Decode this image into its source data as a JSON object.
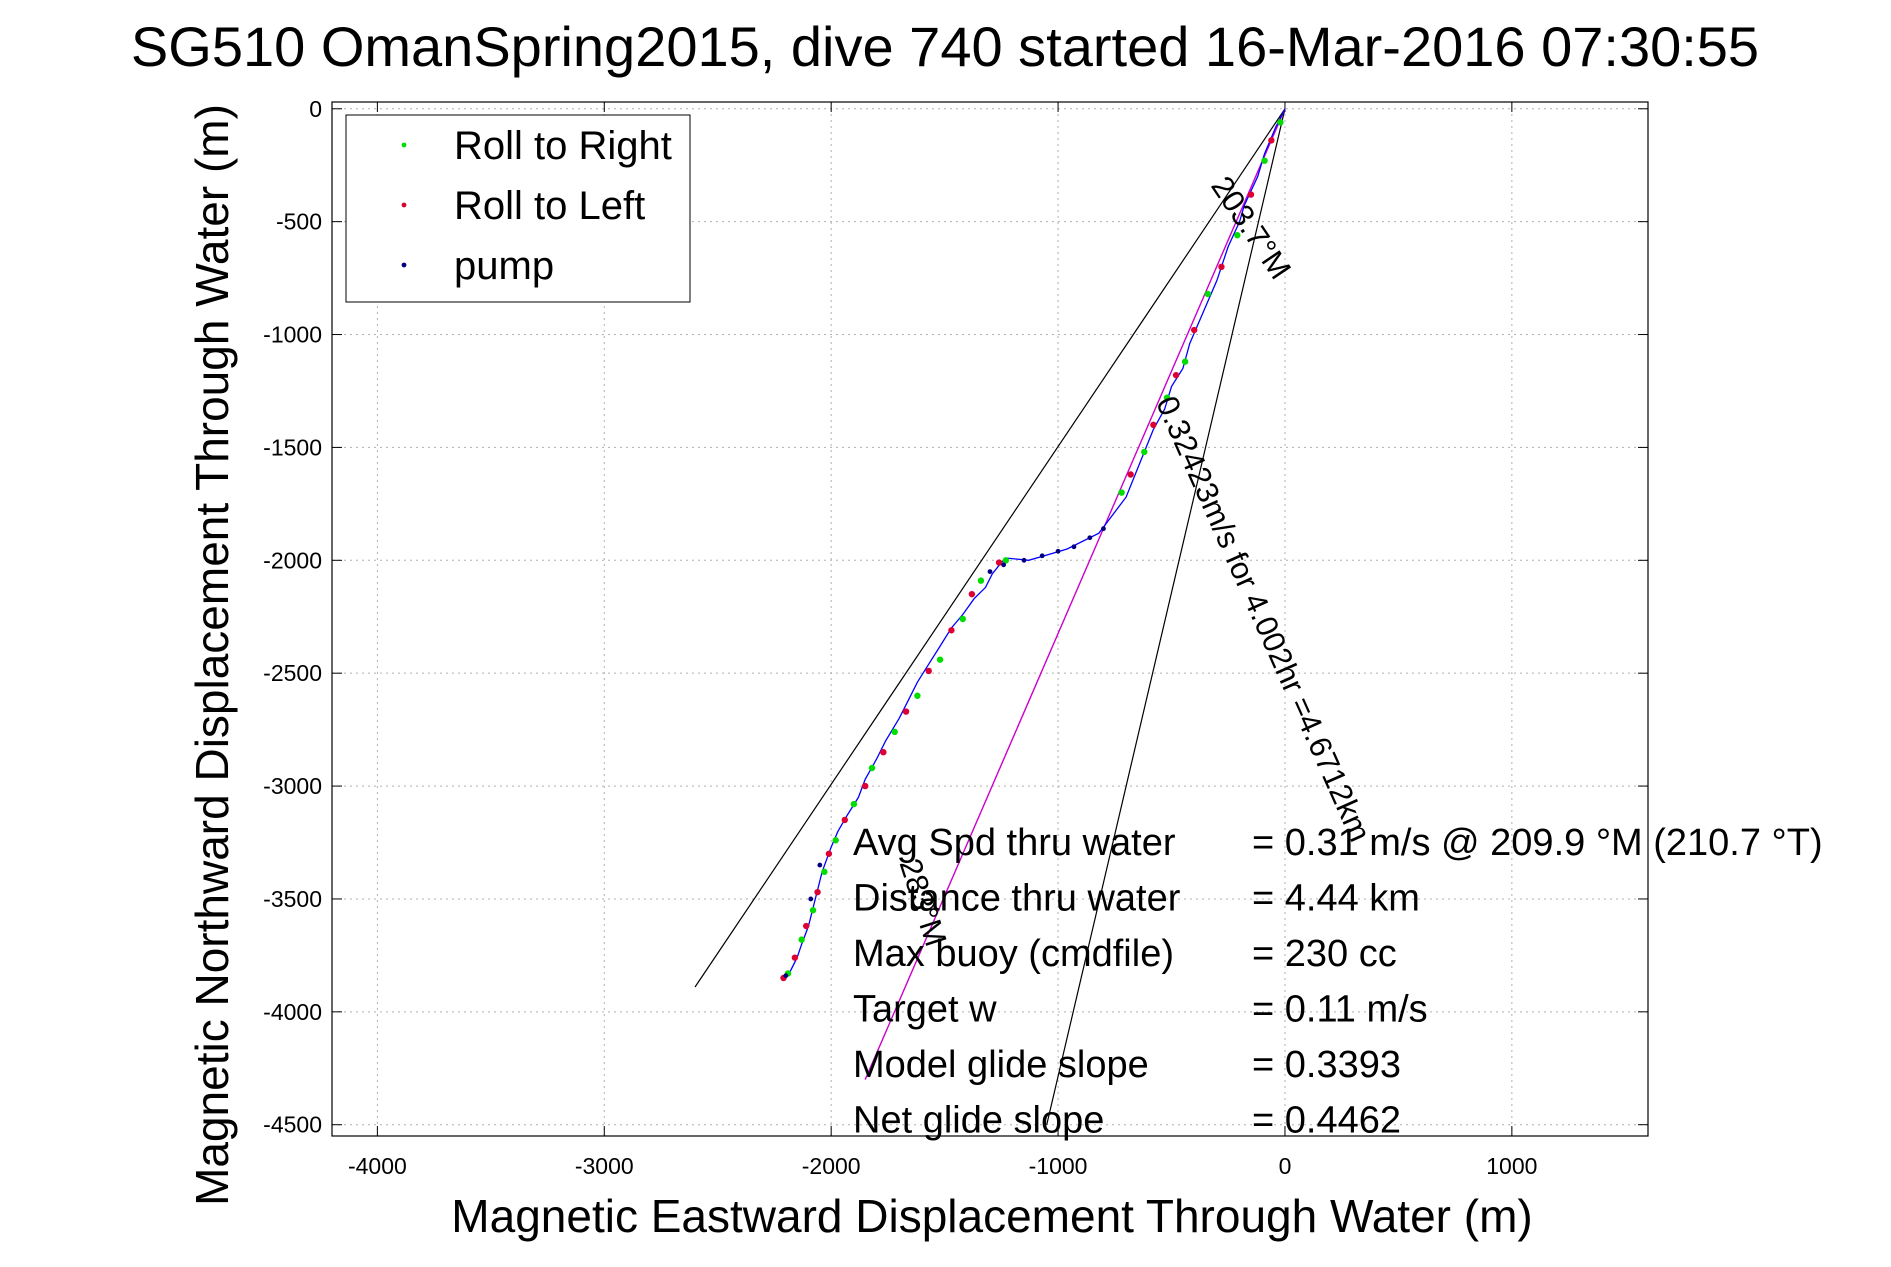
{
  "chart_data": {
    "type": "line",
    "title": "SG510 OmanSpring2015, dive 740 started 16-Mar-2016 07:30:55",
    "xlabel": "Magnetic Eastward Displacement Through Water (m)",
    "ylabel": "Magnetic Northward Displacement Through Water (m)",
    "xlim": [
      -4200,
      1600
    ],
    "ylim": [
      -4550,
      30
    ],
    "xticks": [
      -4000,
      -3000,
      -2000,
      -1000,
      0,
      1000
    ],
    "yticks": [
      0,
      -500,
      -1000,
      -1500,
      -2000,
      -2500,
      -3000,
      -3500,
      -4000,
      -4500
    ],
    "grid": true,
    "legend": {
      "position": "top-left",
      "entries": [
        "Roll to Right",
        "Roll to Left",
        "pump"
      ]
    },
    "colors": {
      "roll_right": "#00dd00",
      "roll_left": "#dd0033",
      "pump": "#000080",
      "track": "#0000ff",
      "heading_line": "#cc00cc",
      "reference": "#000000"
    },
    "track": [
      [
        0,
        0
      ],
      [
        -40,
        -80
      ],
      [
        -90,
        -200
      ],
      [
        -120,
        -300
      ],
      [
        -180,
        -430
      ],
      [
        -200,
        -500
      ],
      [
        -250,
        -610
      ],
      [
        -300,
        -760
      ],
      [
        -360,
        -900
      ],
      [
        -420,
        -1040
      ],
      [
        -450,
        -1150
      ],
      [
        -500,
        -1230
      ],
      [
        -530,
        -1330
      ],
      [
        -580,
        -1420
      ],
      [
        -620,
        -1520
      ],
      [
        -660,
        -1620
      ],
      [
        -700,
        -1720
      ],
      [
        -760,
        -1800
      ],
      [
        -820,
        -1880
      ],
      [
        -960,
        -1950
      ],
      [
        -1060,
        -1980
      ],
      [
        -1130,
        -2000
      ],
      [
        -1230,
        -1990
      ],
      [
        -1250,
        -2010
      ],
      [
        -1290,
        -2060
      ],
      [
        -1320,
        -2120
      ],
      [
        -1370,
        -2170
      ],
      [
        -1420,
        -2240
      ],
      [
        -1470,
        -2300
      ],
      [
        -1520,
        -2380
      ],
      [
        -1570,
        -2460
      ],
      [
        -1620,
        -2540
      ],
      [
        -1660,
        -2620
      ],
      [
        -1700,
        -2700
      ],
      [
        -1760,
        -2800
      ],
      [
        -1800,
        -2880
      ],
      [
        -1850,
        -2970
      ],
      [
        -1880,
        -3050
      ],
      [
        -1930,
        -3130
      ],
      [
        -1970,
        -3200
      ],
      [
        -2000,
        -3270
      ],
      [
        -2040,
        -3380
      ],
      [
        -2060,
        -3460
      ],
      [
        -2080,
        -3540
      ],
      [
        -2100,
        -3620
      ],
      [
        -2130,
        -3700
      ],
      [
        -2150,
        -3760
      ],
      [
        -2180,
        -3820
      ],
      [
        -2200,
        -3840
      ]
    ],
    "roll_right_points": [
      [
        -20,
        -60
      ],
      [
        -90,
        -230
      ],
      [
        -210,
        -560
      ],
      [
        -340,
        -820
      ],
      [
        -440,
        -1120
      ],
      [
        -520,
        -1280
      ],
      [
        -620,
        -1520
      ],
      [
        -720,
        -1700
      ],
      [
        -1230,
        -2000
      ],
      [
        -1340,
        -2090
      ],
      [
        -1420,
        -2260
      ],
      [
        -1520,
        -2440
      ],
      [
        -1620,
        -2600
      ],
      [
        -1720,
        -2760
      ],
      [
        -1820,
        -2920
      ],
      [
        -1900,
        -3080
      ],
      [
        -1980,
        -3240
      ],
      [
        -2030,
        -3380
      ],
      [
        -2080,
        -3550
      ],
      [
        -2130,
        -3680
      ],
      [
        -2190,
        -3830
      ]
    ],
    "roll_left_points": [
      [
        -60,
        -140
      ],
      [
        -150,
        -380
      ],
      [
        -280,
        -700
      ],
      [
        -400,
        -980
      ],
      [
        -480,
        -1180
      ],
      [
        -580,
        -1400
      ],
      [
        -680,
        -1620
      ],
      [
        -1260,
        -2010
      ],
      [
        -1380,
        -2150
      ],
      [
        -1470,
        -2310
      ],
      [
        -1570,
        -2490
      ],
      [
        -1670,
        -2670
      ],
      [
        -1770,
        -2850
      ],
      [
        -1850,
        -3000
      ],
      [
        -1940,
        -3150
      ],
      [
        -2010,
        -3300
      ],
      [
        -2060,
        -3470
      ],
      [
        -2110,
        -3620
      ],
      [
        -2160,
        -3760
      ],
      [
        -2210,
        -3850
      ]
    ],
    "pump_points": [
      [
        -800,
        -1860
      ],
      [
        -860,
        -1900
      ],
      [
        -930,
        -1940
      ],
      [
        -1000,
        -1960
      ],
      [
        -1070,
        -1980
      ],
      [
        -1150,
        -2000
      ],
      [
        -1240,
        -2020
      ],
      [
        -1300,
        -2050
      ],
      [
        -2050,
        -3350
      ],
      [
        -2090,
        -3500
      ],
      [
        -2200,
        -3840
      ]
    ],
    "heading_line": [
      [
        0,
        0
      ],
      [
        -1850,
        -4300
      ]
    ],
    "reference_lines": [
      [
        [
          0,
          0
        ],
        [
          -2600,
          -3890
        ]
      ],
      [
        [
          0,
          0
        ],
        [
          -1050,
          -4500
        ]
      ]
    ],
    "line_annotations": [
      {
        "text": "203.7°M",
        "x": -330,
        "y": -340,
        "angle": 56
      },
      {
        "text": "0.32423m/s for 4.002hr =4.6712km",
        "x": -570,
        "y": -1300,
        "angle": 66
      },
      {
        "text": "283°M",
        "x": -1700,
        "y": -3340,
        "angle": 72
      }
    ],
    "stats": [
      {
        "label": "Avg Spd thru water",
        "value": "=  0.31 m/s @ 209.9 °M (210.7 °T)"
      },
      {
        "label": "Distance thru water",
        "value": "=  4.44 km"
      },
      {
        "label": "Max buoy (cmdfile)",
        "value": "= 230 cc"
      },
      {
        "label": "Target w",
        "value": "= 0.11 m/s"
      },
      {
        "label": "Model glide slope",
        "value": "= 0.3393"
      },
      {
        "label": "Net glide slope",
        "value": "= 0.4462"
      }
    ]
  }
}
